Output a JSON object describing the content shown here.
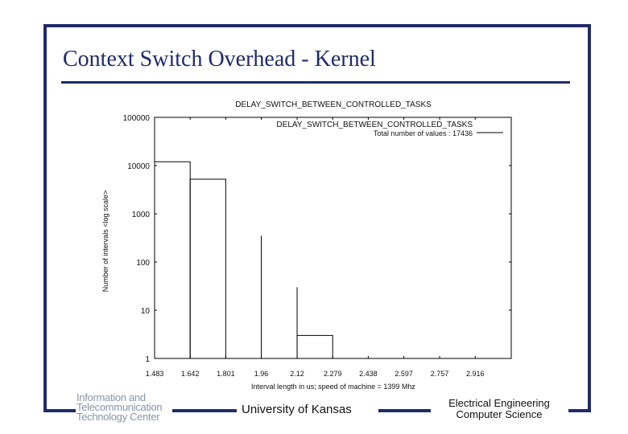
{
  "slide": {
    "title": "Context Switch Overhead - Kernel",
    "footer_center": "University of Kansas",
    "footer_right_line1": "Electrical Engineering",
    "footer_right_line2": "Computer Science",
    "logo_line1": "Information and",
    "logo_line2": "Telecommunication",
    "logo_line3": "Technology Center",
    "accent_color": "#1f2a6b"
  },
  "chart_data": {
    "type": "bar",
    "title": "DELAY_SWITCH_BETWEEN_CONTROLLED_TASKS",
    "legend_label": "DELAY_SWITCH_BETWEEN_CONTROLLED_TASKS",
    "legend_total": "Total number of values : 17436",
    "legend_placement": "top-right",
    "xlabel": "Interval length in us; speed of machine = 1399 Mhz",
    "ylabel": "Number of intervals <log scale>",
    "y_scale": "log",
    "ylim": [
      1,
      100000
    ],
    "y_ticks": [
      1,
      10,
      100,
      1000,
      10000,
      100000
    ],
    "y_tick_labels": [
      "1",
      "10",
      "100",
      "1000",
      "10000",
      "100000"
    ],
    "xlim": [
      1.483,
      3.077
    ],
    "x_ticks": [
      1.483,
      1.642,
      1.801,
      1.96,
      2.12,
      2.279,
      2.438,
      2.597,
      2.757,
      2.916
    ],
    "x_tick_labels": [
      "1.483",
      "1.642",
      "1.801",
      "1.96",
      "2.12",
      "2.279",
      "2.438",
      "2.597",
      "2.757",
      "2.916"
    ],
    "bars": [
      {
        "x0": 1.483,
        "x1": 1.642,
        "value": 12000
      },
      {
        "x0": 1.642,
        "x1": 1.801,
        "value": 5200
      },
      {
        "x0": 1.96,
        "x1": 1.96,
        "value": 350
      },
      {
        "x0": 2.12,
        "x1": 2.12,
        "value": 30
      },
      {
        "x0": 2.12,
        "x1": 2.279,
        "value": 3
      }
    ],
    "grid": false
  }
}
